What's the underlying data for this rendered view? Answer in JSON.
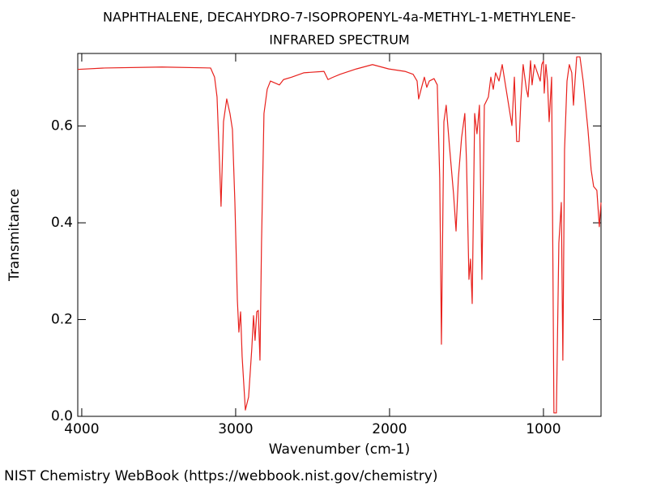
{
  "chart_data": {
    "type": "line",
    "title": "NAPHTHALENE, DECAHYDRO-7-ISOPROPENYL-4a-METHYL-1-METHYLENE-",
    "subtitle": "INFRARED SPECTRUM",
    "x_label": "Wavenumber (cm-1)",
    "y_label": "Transmitance",
    "source": "NIST Chemistry WebBook (https://webbook.nist.gov/chemistry)",
    "color": "#e8211d",
    "xlim": [
      4026,
      626
    ],
    "ylim": [
      0,
      0.75
    ],
    "xticks": [
      4000,
      3000,
      2000,
      1000
    ],
    "yticks": [
      {
        "value": 0,
        "label": "0.0"
      },
      0.2,
      0.4,
      0.6
    ],
    "x": [
      4026,
      3847,
      3479,
      3163,
      3137,
      3121,
      3105,
      3095,
      3079,
      3058,
      3037,
      3021,
      3005,
      2989,
      2979,
      2968,
      2958,
      2937,
      2916,
      2895,
      2884,
      2874,
      2863,
      2853,
      2842,
      2832,
      2816,
      2795,
      2774,
      2716,
      2689,
      2637,
      2558,
      2426,
      2400,
      2374,
      2321,
      2216,
      2111,
      2005,
      1900,
      1847,
      1821,
      1811,
      1795,
      1774,
      1758,
      1742,
      1711,
      1690,
      1674,
      1663,
      1647,
      1632,
      1611,
      1584,
      1568,
      1553,
      1532,
      1511,
      1500,
      1484,
      1474,
      1463,
      1447,
      1432,
      1416,
      1400,
      1384,
      1358,
      1342,
      1326,
      1311,
      1289,
      1268,
      1205,
      1189,
      1174,
      1158,
      1147,
      1132,
      1111,
      1100,
      1084,
      1074,
      1058,
      1021,
      1011,
      1000,
      995,
      984,
      974,
      963,
      947,
      932,
      916,
      900,
      884,
      874,
      863,
      847,
      832,
      816,
      805,
      795,
      784,
      763,
      742,
      711,
      690,
      674,
      653,
      637,
      626
    ],
    "values": [
      0.717,
      0.72,
      0.722,
      0.72,
      0.701,
      0.66,
      0.526,
      0.434,
      0.609,
      0.656,
      0.626,
      0.593,
      0.442,
      0.241,
      0.174,
      0.216,
      0.124,
      0.013,
      0.04,
      0.141,
      0.208,
      0.157,
      0.216,
      0.219,
      0.116,
      0.358,
      0.626,
      0.676,
      0.693,
      0.685,
      0.696,
      0.701,
      0.71,
      0.713,
      0.696,
      0.7,
      0.707,
      0.718,
      0.727,
      0.718,
      0.713,
      0.707,
      0.693,
      0.656,
      0.676,
      0.701,
      0.68,
      0.693,
      0.698,
      0.685,
      0.492,
      0.149,
      0.609,
      0.643,
      0.559,
      0.459,
      0.383,
      0.492,
      0.576,
      0.626,
      0.526,
      0.283,
      0.325,
      0.233,
      0.626,
      0.584,
      0.643,
      0.283,
      0.643,
      0.66,
      0.701,
      0.676,
      0.71,
      0.693,
      0.727,
      0.601,
      0.701,
      0.568,
      0.568,
      0.651,
      0.727,
      0.676,
      0.66,
      0.735,
      0.685,
      0.727,
      0.693,
      0.727,
      0.735,
      0.668,
      0.727,
      0.693,
      0.609,
      0.701,
      0.007,
      0.007,
      0.358,
      0.442,
      0.116,
      0.551,
      0.693,
      0.727,
      0.71,
      0.643,
      0.693,
      0.743,
      0.743,
      0.693,
      0.593,
      0.509,
      0.475,
      0.467,
      0.392,
      0.442
    ]
  }
}
